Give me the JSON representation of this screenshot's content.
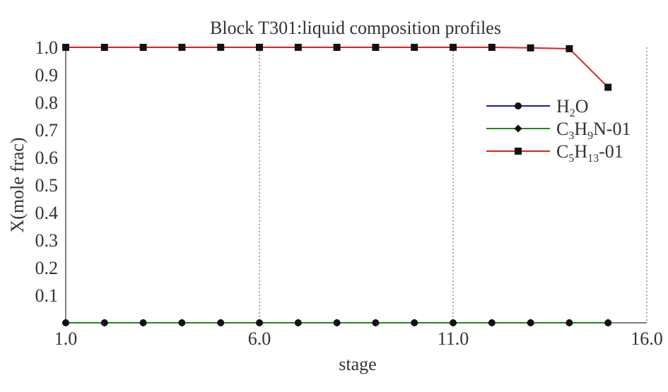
{
  "chart_data": {
    "type": "line",
    "title": "Block T301:liquid composition profiles",
    "xlabel": "stage",
    "ylabel": "X(mole frac)",
    "xlim": [
      1.0,
      16.0
    ],
    "ylim": [
      0.0,
      1.0
    ],
    "x_ticks": [
      "1.0",
      "6.0",
      "11.0",
      "16.0"
    ],
    "y_ticks": [
      "0.1",
      "0.2",
      "0.3",
      "0.4",
      "0.5",
      "0.6",
      "0.7",
      "0.8",
      "0.9",
      "1.0"
    ],
    "grid": "vertical dotted at x = 6, 11, 16",
    "legend_placement": "right",
    "x": [
      1,
      2,
      3,
      4,
      5,
      6,
      7,
      8,
      9,
      10,
      11,
      12,
      13,
      14,
      15
    ],
    "series": [
      {
        "name": "H2O",
        "legend_base": [
          "H",
          "2",
          "O"
        ],
        "color": "#1a1aa8",
        "marker": "circle",
        "values": [
          0,
          0,
          0,
          0,
          0,
          0,
          0,
          0,
          0,
          0,
          0,
          0,
          0,
          0,
          0
        ]
      },
      {
        "name": "C3H9N-01",
        "legend_base": [
          "C",
          "3",
          "H",
          "9",
          "N-01"
        ],
        "color": "#1f8a1f",
        "marker": "diamond",
        "values": [
          0,
          0,
          0,
          0,
          0,
          0,
          0,
          0,
          0,
          0,
          0,
          0,
          0,
          0,
          0
        ]
      },
      {
        "name": "C5H13-01",
        "legend_base": [
          "C",
          "5",
          "H",
          "13",
          "-01"
        ],
        "color": "#e02020",
        "marker": "square",
        "values": [
          1.0,
          1.0,
          1.0,
          1.0,
          1.0,
          1.0,
          1.0,
          1.0,
          1.0,
          1.0,
          1.0,
          1.0,
          0.998,
          0.995,
          0.855
        ]
      }
    ]
  }
}
